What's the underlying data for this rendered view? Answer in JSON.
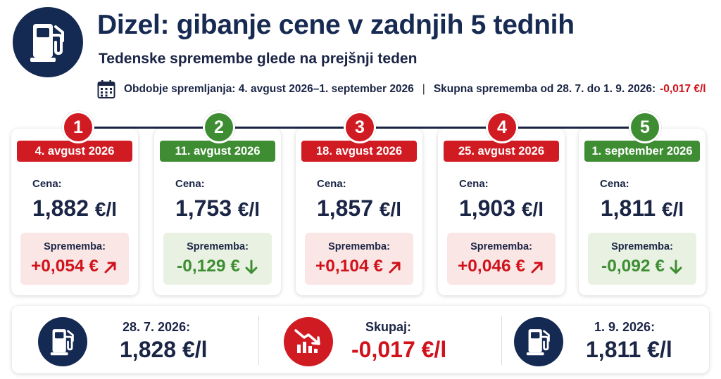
{
  "header": {
    "title": "Dizel: gibanje cene v zadnjih 5 tednih",
    "subtitle": "Tedenske spremembe glede na prejšnji teden",
    "icon": "fuel-pump-icon"
  },
  "period": {
    "label": "Obdobje spremljanja: 4. avgust 2026–1. september 2026",
    "separator": "|",
    "total_label": "Skupna sprememba od 28. 7. do 1. 9. 2026:",
    "total_value": "-0,017 €/l"
  },
  "weeks": [
    {
      "number": "1",
      "date": "4. avgust 2026",
      "price_label": "Cena:",
      "price": "1,882",
      "unit": "€/l",
      "change_label": "Sprememba:",
      "change": "+0,054 €",
      "direction": "up",
      "color": "#d11b22"
    },
    {
      "number": "2",
      "date": "11. avgust 2026",
      "price_label": "Cena:",
      "price": "1,753",
      "unit": "€/l",
      "change_label": "Sprememba:",
      "change": "-0,129 €",
      "direction": "down",
      "color": "#3e8d33"
    },
    {
      "number": "3",
      "date": "18. avgust 2026",
      "price_label": "Cena:",
      "price": "1,857",
      "unit": "€/l",
      "change_label": "Sprememba:",
      "change": "+0,104 €",
      "direction": "up",
      "color": "#d11b22"
    },
    {
      "number": "4",
      "date": "25. avgust 2026",
      "price_label": "Cena:",
      "price": "1,903",
      "unit": "€/l",
      "change_label": "Sprememba:",
      "change": "+0,046 €",
      "direction": "up",
      "color": "#d11b22"
    },
    {
      "number": "5",
      "date": "1. september 2026",
      "price_label": "Cena:",
      "price": "1,811",
      "unit": "€/l",
      "change_label": "Sprememba:",
      "change": "-0,092 €",
      "direction": "down",
      "color": "#3e8d33"
    }
  ],
  "summary": {
    "start": {
      "label": "28. 7. 2026:",
      "value": "1,828",
      "unit": "€/l"
    },
    "total": {
      "label": "Skupaj:",
      "value": "-0,017",
      "unit": "€/l"
    },
    "end": {
      "label": "1. 9. 2026:",
      "value": "1,811",
      "unit": "€/l"
    }
  },
  "colors": {
    "navy": "#152a52",
    "red": "#d11b22",
    "green": "#3e8d33"
  }
}
